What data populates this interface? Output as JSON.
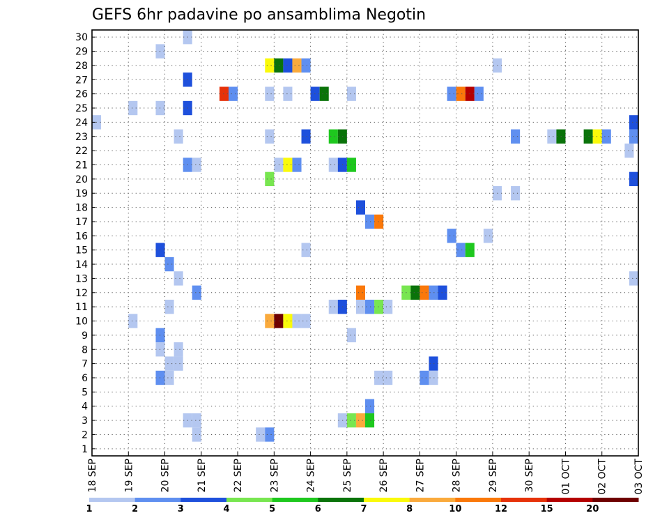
{
  "chart_data": {
    "type": "heatmap",
    "title": "GEFS 6hr padavine po ansamblima Negotin",
    "x_tick_labels": [
      "18 SEP",
      "19 SEP",
      "20 SEP",
      "21 SEP",
      "22 SEP",
      "23 SEP",
      "24 SEP",
      "25 SEP",
      "26 SEP",
      "27 SEP",
      "28 SEP",
      "29 SEP",
      "30 SEP",
      "01 OCT",
      "02 OCT",
      "03 OCT"
    ],
    "y_tick_labels": [
      "1",
      "2",
      "3",
      "4",
      "5",
      "6",
      "7",
      "8",
      "9",
      "10",
      "11",
      "12",
      "13",
      "14",
      "15",
      "16",
      "17",
      "18",
      "19",
      "20",
      "21",
      "22",
      "23",
      "24",
      "25",
      "26",
      "27",
      "28",
      "29",
      "30"
    ],
    "xlim": [
      0,
      60
    ],
    "ylim": [
      0.5,
      30.5
    ],
    "grid": true,
    "legend": {
      "position": "bottom",
      "labels": [
        "1",
        "2",
        "3",
        "4",
        "5",
        "6",
        "7",
        "8",
        "10",
        "12",
        "15",
        "20"
      ],
      "colors": [
        "#b4c7f0",
        "#5f8ff0",
        "#1e50dc",
        "#78e650",
        "#1ec81e",
        "#0a730a",
        "#fafa0a",
        "#faaa3c",
        "#fa780a",
        "#e6320a",
        "#b40000",
        "#6e0000"
      ]
    },
    "cells": [
      [
        10.5,
        30,
        0
      ],
      [
        7.5,
        29,
        0
      ],
      [
        19.5,
        28,
        6
      ],
      [
        20.5,
        28,
        5
      ],
      [
        21.5,
        28,
        2
      ],
      [
        22.5,
        28,
        7
      ],
      [
        23.5,
        28,
        1
      ],
      [
        44.5,
        28,
        0
      ],
      [
        10.5,
        27,
        2
      ],
      [
        14.5,
        26,
        9
      ],
      [
        15.5,
        26,
        1
      ],
      [
        19.5,
        26,
        0
      ],
      [
        21.5,
        26,
        0
      ],
      [
        24.5,
        26,
        2
      ],
      [
        25.5,
        26,
        5
      ],
      [
        28.5,
        26,
        0
      ],
      [
        39.5,
        26,
        1
      ],
      [
        40.5,
        26,
        8
      ],
      [
        41.5,
        26,
        10
      ],
      [
        42.5,
        26,
        1
      ],
      [
        4.5,
        25,
        0
      ],
      [
        7.5,
        25,
        0
      ],
      [
        10.5,
        25,
        2
      ],
      [
        0.5,
        24,
        0
      ],
      [
        59.5,
        24,
        2
      ],
      [
        9.5,
        23,
        0
      ],
      [
        19.5,
        23,
        0
      ],
      [
        23.5,
        23,
        2
      ],
      [
        26.5,
        23,
        4
      ],
      [
        27.5,
        23,
        5
      ],
      [
        46.5,
        23,
        1
      ],
      [
        50.5,
        23,
        0
      ],
      [
        51.5,
        23,
        5
      ],
      [
        54.5,
        23,
        5
      ],
      [
        55.5,
        23,
        6
      ],
      [
        56.5,
        23,
        1
      ],
      [
        59.5,
        23,
        1
      ],
      [
        59.0,
        22,
        0
      ],
      [
        10.5,
        21,
        1
      ],
      [
        11.5,
        21,
        0
      ],
      [
        20.5,
        21,
        0
      ],
      [
        21.5,
        21,
        6
      ],
      [
        22.5,
        21,
        1
      ],
      [
        26.5,
        21,
        0
      ],
      [
        27.5,
        21,
        2
      ],
      [
        28.5,
        21,
        4
      ],
      [
        19.5,
        20,
        3
      ],
      [
        59.5,
        20,
        2
      ],
      [
        44.5,
        19,
        0
      ],
      [
        46.5,
        19,
        0
      ],
      [
        29.5,
        18,
        2
      ],
      [
        30.5,
        17,
        1
      ],
      [
        31.5,
        17,
        8
      ],
      [
        39.5,
        16,
        1
      ],
      [
        43.5,
        16,
        0
      ],
      [
        7.5,
        15,
        2
      ],
      [
        23.5,
        15,
        0
      ],
      [
        40.5,
        15,
        1
      ],
      [
        41.5,
        15,
        4
      ],
      [
        8.5,
        14,
        1
      ],
      [
        9.5,
        13,
        0
      ],
      [
        59.5,
        13,
        0
      ],
      [
        11.5,
        12,
        1
      ],
      [
        29.5,
        12,
        8
      ],
      [
        34.5,
        12,
        3
      ],
      [
        35.5,
        12,
        5
      ],
      [
        36.5,
        12,
        8
      ],
      [
        37.5,
        12,
        1
      ],
      [
        38.5,
        12,
        2
      ],
      [
        8.5,
        11,
        0
      ],
      [
        26.5,
        11,
        0
      ],
      [
        27.5,
        11,
        2
      ],
      [
        29.5,
        11,
        0
      ],
      [
        30.5,
        11,
        1
      ],
      [
        31.5,
        11,
        3
      ],
      [
        32.5,
        11,
        0
      ],
      [
        4.5,
        10,
        0
      ],
      [
        19.5,
        10,
        7
      ],
      [
        20.5,
        10,
        11
      ],
      [
        21.5,
        10,
        6
      ],
      [
        22.5,
        10,
        0
      ],
      [
        23.5,
        10,
        0
      ],
      [
        7.5,
        9,
        1
      ],
      [
        28.5,
        9,
        0
      ],
      [
        7.5,
        8,
        0
      ],
      [
        9.5,
        8,
        0
      ],
      [
        8.5,
        7,
        0
      ],
      [
        9.5,
        7,
        0
      ],
      [
        37.5,
        7,
        2
      ],
      [
        7.5,
        6,
        1
      ],
      [
        8.5,
        6,
        0
      ],
      [
        31.5,
        6,
        0
      ],
      [
        32.5,
        6,
        0
      ],
      [
        36.5,
        6,
        1
      ],
      [
        37.5,
        6,
        0
      ],
      [
        30.5,
        4,
        1
      ],
      [
        10.5,
        3,
        0
      ],
      [
        11.5,
        3,
        0
      ],
      [
        27.5,
        3,
        0
      ],
      [
        28.5,
        3,
        3
      ],
      [
        29.5,
        3,
        7
      ],
      [
        30.5,
        3,
        4
      ],
      [
        11.5,
        2,
        0
      ],
      [
        18.5,
        2,
        0
      ],
      [
        19.5,
        2,
        1
      ]
    ]
  }
}
